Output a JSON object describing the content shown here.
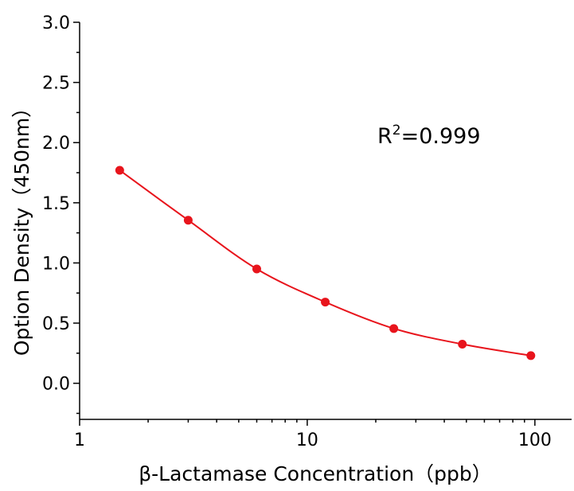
{
  "chart_data": {
    "type": "scatter",
    "x_label": "β-Lactamase Concentration（ppb）",
    "y_label": "Option Density（450nm）",
    "annotation": [
      "R",
      "2",
      "=0.999"
    ],
    "log_x": true,
    "series": [
      {
        "color": "#e8141c",
        "line": true,
        "x": [
          1.5,
          3,
          6,
          12,
          24,
          48,
          96
        ],
        "values": [
          1.77,
          1.355,
          0.95,
          0.675,
          0.455,
          0.325,
          0.23
        ]
      }
    ],
    "xlim": [
      1,
      145
    ],
    "xticks": [
      1,
      10,
      100
    ],
    "x_minor_ticks": [
      2,
      3,
      4,
      5,
      6,
      7,
      8,
      9,
      20,
      30,
      40,
      50,
      60,
      70,
      80,
      90
    ],
    "ylim": [
      -0.3,
      3.0
    ],
    "yticks": [
      {
        "value": 0,
        "label": "0.0"
      },
      0.5,
      {
        "value": 1,
        "label": "1.0"
      },
      1.5,
      {
        "value": 2,
        "label": "2.0"
      },
      2.5,
      {
        "value": 3,
        "label": "3.0"
      }
    ],
    "y_minor_ticks": [
      -0.25,
      0.25,
      0.75,
      1.25,
      1.75,
      2.25,
      2.75
    ]
  }
}
